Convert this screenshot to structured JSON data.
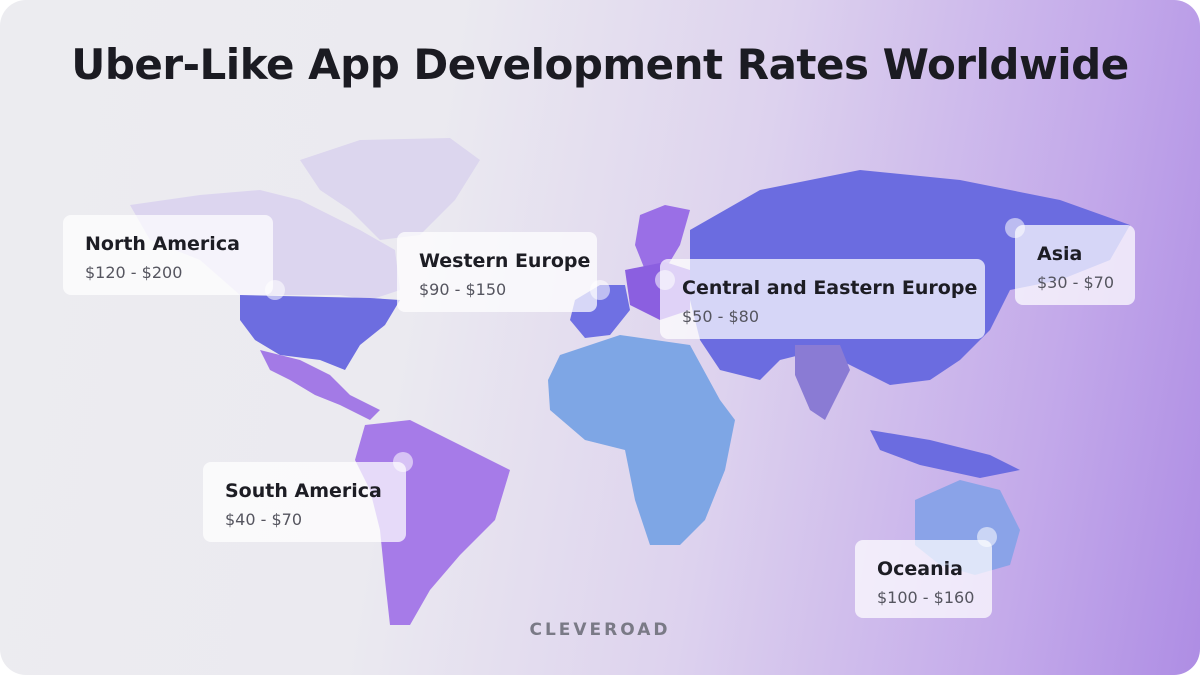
{
  "title": "Uber-Like App Development Rates Worldwide",
  "regions": [
    {
      "name": "North America",
      "rate": "$120 - $200"
    },
    {
      "name": "Western Europe",
      "rate": "$90 - $150"
    },
    {
      "name": "Central and Eastern Europe",
      "rate": "$50 - $80"
    },
    {
      "name": "Asia",
      "rate": "$30 - $70"
    },
    {
      "name": "South America",
      "rate": "$40 - $70"
    },
    {
      "name": "Oceania",
      "rate": "$100 - $160"
    }
  ],
  "brand": "CLEVEROAD"
}
